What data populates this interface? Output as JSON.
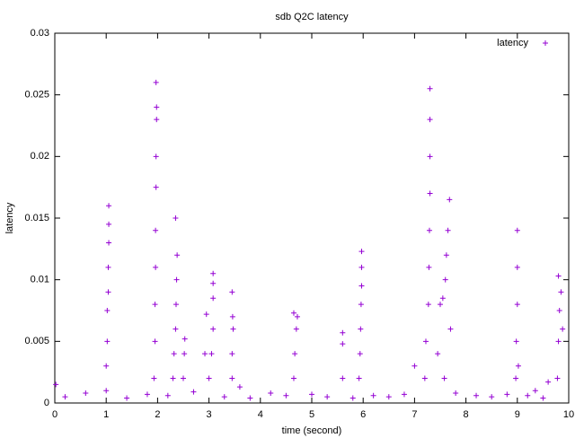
{
  "chart_data": {
    "type": "scatter",
    "title": "sdb Q2C latency",
    "xlabel": "time (second)",
    "ylabel": "latency",
    "xlim": [
      0,
      10
    ],
    "xticks": [
      0,
      1,
      2,
      3,
      4,
      5,
      6,
      7,
      8,
      9,
      10
    ],
    "ylim": [
      0,
      0.03
    ],
    "yticks": [
      0,
      0.005,
      0.01,
      0.015,
      0.02,
      0.025,
      0.03
    ],
    "legend": "top-right",
    "series": [
      {
        "name": "latency",
        "color": "#9400d3",
        "x": [
          1.0,
          1.0,
          1.02,
          1.02,
          1.04,
          1.04,
          1.05,
          1.05,
          1.05,
          1.93,
          1.95,
          1.95,
          1.96,
          1.96,
          1.97,
          1.97,
          1.98,
          1.98,
          1.97,
          2.3,
          2.32,
          2.35,
          2.36,
          2.37,
          2.38,
          2.35,
          2.5,
          2.52,
          2.53,
          3.0,
          3.05,
          3.08,
          3.08,
          3.08,
          3.08,
          2.92,
          2.95,
          3.45,
          3.45,
          3.47,
          3.46,
          3.45,
          4.65,
          4.67,
          4.7,
          4.65,
          4.72,
          5.6,
          5.6,
          5.6,
          5.92,
          5.94,
          5.95,
          5.96,
          5.97,
          5.97,
          5.97,
          7.2,
          7.22,
          7.27,
          7.28,
          7.29,
          7.3,
          7.3,
          7.3,
          7.3,
          7.0,
          7.45,
          7.5,
          7.55,
          7.6,
          7.62,
          7.65,
          7.68,
          7.7,
          7.58,
          8.97,
          8.98,
          9.0,
          9.0,
          9.0,
          9.02,
          9.35,
          9.6,
          9.78,
          9.8,
          9.82,
          9.85,
          9.8,
          9.88,
          0.02,
          3.6,
          0.2,
          0.6,
          1.4,
          1.8,
          2.2,
          2.7,
          3.3,
          3.8,
          4.2,
          4.5,
          5.0,
          5.3,
          5.8,
          6.2,
          6.5,
          6.8,
          7.8,
          8.2,
          8.5,
          8.8,
          9.2,
          9.5
        ],
        "values": [
          0.001,
          0.003,
          0.005,
          0.0075,
          0.009,
          0.011,
          0.013,
          0.0145,
          0.016,
          0.002,
          0.005,
          0.008,
          0.011,
          0.014,
          0.0175,
          0.02,
          0.023,
          0.024,
          0.026,
          0.002,
          0.004,
          0.006,
          0.008,
          0.01,
          0.012,
          0.015,
          0.002,
          0.004,
          0.0052,
          0.002,
          0.004,
          0.006,
          0.0085,
          0.0097,
          0.0105,
          0.004,
          0.0072,
          0.002,
          0.004,
          0.006,
          0.007,
          0.009,
          0.002,
          0.004,
          0.006,
          0.0073,
          0.007,
          0.0057,
          0.0048,
          0.002,
          0.002,
          0.004,
          0.006,
          0.008,
          0.0095,
          0.011,
          0.0123,
          0.002,
          0.005,
          0.008,
          0.011,
          0.014,
          0.017,
          0.02,
          0.023,
          0.0255,
          0.003,
          0.004,
          0.008,
          0.0085,
          0.01,
          0.012,
          0.014,
          0.0165,
          0.006,
          0.002,
          0.002,
          0.005,
          0.008,
          0.011,
          0.014,
          0.003,
          0.001,
          0.0017,
          0.002,
          0.005,
          0.0075,
          0.009,
          0.0103,
          0.006,
          0.0015,
          0.0013,
          0.0005,
          0.0008,
          0.0004,
          0.0007,
          0.0006,
          0.0009,
          0.0005,
          0.0004,
          0.0008,
          0.0006,
          0.0007,
          0.0005,
          0.0004,
          0.0006,
          0.0005,
          0.0007,
          0.0008,
          0.0006,
          0.0005,
          0.0007,
          0.0006,
          0.0004
        ]
      }
    ]
  }
}
